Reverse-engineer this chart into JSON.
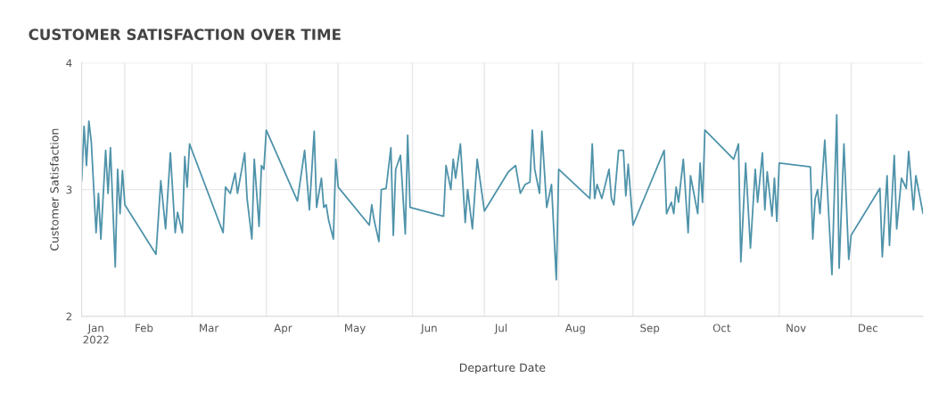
{
  "chart_data": {
    "type": "line",
    "title": "CUSTOMER SATISFACTION OVER TIME",
    "xlabel": "Departure Date",
    "ylabel": "Customer Satisfaction",
    "x": [
      "2022-01-14",
      "2022-01-15",
      "2022-01-16",
      "2022-01-17",
      "2022-01-18",
      "2022-01-20",
      "2022-01-21",
      "2022-01-22",
      "2022-01-24",
      "2022-01-25",
      "2022-01-26",
      "2022-01-28",
      "2022-01-29",
      "2022-01-30",
      "2022-01-31",
      "2022-02-01",
      "2022-02-14",
      "2022-02-16",
      "2022-02-18",
      "2022-02-20",
      "2022-02-22",
      "2022-02-23",
      "2022-02-25",
      "2022-02-26",
      "2022-02-27",
      "2022-02-28",
      "2022-03-14",
      "2022-03-15",
      "2022-03-17",
      "2022-03-19",
      "2022-03-20",
      "2022-03-23",
      "2022-03-24",
      "2022-03-26",
      "2022-03-27",
      "2022-03-29",
      "2022-03-30",
      "2022-03-31",
      "2022-04-01",
      "2022-04-14",
      "2022-04-17",
      "2022-04-19",
      "2022-04-21",
      "2022-04-22",
      "2022-04-24",
      "2022-04-25",
      "2022-04-26",
      "2022-04-27",
      "2022-04-29",
      "2022-04-30",
      "2022-05-01",
      "2022-05-14",
      "2022-05-15",
      "2022-05-16",
      "2022-05-18",
      "2022-05-19",
      "2022-05-21",
      "2022-05-23",
      "2022-05-24",
      "2022-05-25",
      "2022-05-27",
      "2022-05-29",
      "2022-05-30",
      "2022-05-31",
      "2022-06-14",
      "2022-06-15",
      "2022-06-17",
      "2022-06-18",
      "2022-06-19",
      "2022-06-21",
      "2022-06-23",
      "2022-06-24",
      "2022-06-26",
      "2022-06-28",
      "2022-07-01",
      "2022-07-11",
      "2022-07-14",
      "2022-07-16",
      "2022-07-18",
      "2022-07-20",
      "2022-07-21",
      "2022-07-22",
      "2022-07-24",
      "2022-07-25",
      "2022-07-27",
      "2022-07-29",
      "2022-07-31",
      "2022-08-01",
      "2022-08-14",
      "2022-08-15",
      "2022-08-16",
      "2022-08-17",
      "2022-08-19",
      "2022-08-22",
      "2022-08-23",
      "2022-08-24",
      "2022-08-26",
      "2022-08-28",
      "2022-08-29",
      "2022-08-30",
      "2022-09-01",
      "2022-09-14",
      "2022-09-15",
      "2022-09-17",
      "2022-09-18",
      "2022-09-19",
      "2022-09-20",
      "2022-09-22",
      "2022-09-24",
      "2022-09-25",
      "2022-09-28",
      "2022-09-29",
      "2022-09-30",
      "2022-10-01",
      "2022-10-13",
      "2022-10-15",
      "2022-10-16",
      "2022-10-18",
      "2022-10-20",
      "2022-10-22",
      "2022-10-23",
      "2022-10-25",
      "2022-10-26",
      "2022-10-27",
      "2022-10-29",
      "2022-10-30",
      "2022-10-31",
      "2022-11-01",
      "2022-11-14",
      "2022-11-15",
      "2022-11-16",
      "2022-11-17",
      "2022-11-18",
      "2022-11-20",
      "2022-11-23",
      "2022-11-25",
      "2022-11-26",
      "2022-11-28",
      "2022-11-30",
      "2022-12-01",
      "2022-12-13",
      "2022-12-14",
      "2022-12-16",
      "2022-12-17",
      "2022-12-19",
      "2022-12-20",
      "2022-12-22",
      "2022-12-24",
      "2022-12-25",
      "2022-12-27",
      "2022-12-28",
      "2022-12-31"
    ],
    "series": [
      {
        "color": "#4f93aa",
        "values": [
          3.07,
          3.5,
          3.19,
          3.54,
          3.38,
          2.66,
          2.97,
          2.61,
          3.31,
          2.97,
          3.33,
          2.39,
          3.16,
          2.81,
          3.15,
          2.88,
          2.49,
          3.07,
          2.69,
          3.29,
          2.66,
          2.82,
          2.66,
          3.26,
          3.02,
          3.36,
          2.66,
          3.02,
          2.97,
          3.13,
          2.97,
          3.29,
          2.93,
          2.61,
          3.24,
          2.71,
          3.19,
          3.16,
          3.47,
          2.91,
          3.31,
          2.84,
          3.46,
          2.86,
          3.09,
          2.86,
          2.88,
          2.76,
          2.61,
          3.24,
          3.02,
          2.72,
          2.88,
          2.76,
          2.59,
          3.0,
          3.01,
          3.33,
          2.64,
          3.16,
          3.27,
          2.65,
          3.43,
          2.86,
          2.79,
          3.19,
          3.0,
          3.24,
          3.09,
          3.36,
          2.74,
          3.0,
          2.69,
          3.24,
          2.83,
          3.14,
          3.19,
          2.97,
          3.04,
          3.06,
          3.47,
          3.16,
          2.97,
          3.46,
          2.86,
          3.04,
          2.29,
          3.16,
          2.93,
          3.36,
          2.93,
          3.04,
          2.93,
          3.16,
          2.93,
          2.88,
          3.31,
          3.31,
          2.95,
          3.2,
          2.72,
          3.31,
          2.81,
          2.9,
          2.81,
          3.02,
          2.9,
          3.24,
          2.66,
          3.11,
          2.81,
          3.21,
          2.9,
          3.47,
          3.24,
          3.36,
          2.43,
          3.21,
          2.54,
          3.16,
          2.9,
          3.29,
          2.84,
          3.14,
          2.79,
          3.09,
          2.75,
          3.21,
          3.18,
          2.61,
          2.93,
          3.0,
          2.81,
          3.39,
          2.33,
          3.59,
          2.38,
          3.36,
          2.45,
          2.64,
          3.01,
          2.47,
          3.11,
          2.56,
          3.27,
          2.69,
          3.09,
          3.01,
          3.3,
          2.84,
          3.11,
          2.81
        ]
      }
    ],
    "xlim": [
      "2022-01-14",
      "2022-12-31"
    ],
    "xticks": [
      {
        "value": "2022-01-20",
        "label": "Jan\n2022"
      },
      {
        "value": "2022-02-01",
        "label": null
      },
      {
        "value": "2022-02-09",
        "label": "Feb"
      },
      {
        "value": "2022-03-01",
        "label": null
      },
      {
        "value": "2022-03-08",
        "label": "Mar"
      },
      {
        "value": "2022-04-01",
        "label": null
      },
      {
        "value": "2022-04-08",
        "label": "Apr"
      },
      {
        "value": "2022-05-01",
        "label": null
      },
      {
        "value": "2022-05-08",
        "label": "May"
      },
      {
        "value": "2022-06-01",
        "label": null
      },
      {
        "value": "2022-06-08",
        "label": "Jun"
      },
      {
        "value": "2022-07-01",
        "label": null
      },
      {
        "value": "2022-07-08",
        "label": "Jul"
      },
      {
        "value": "2022-08-01",
        "label": null
      },
      {
        "value": "2022-08-08",
        "label": "Aug"
      },
      {
        "value": "2022-09-01",
        "label": null
      },
      {
        "value": "2022-09-08",
        "label": "Sep"
      },
      {
        "value": "2022-10-01",
        "label": null
      },
      {
        "value": "2022-10-08",
        "label": "Oct"
      },
      {
        "value": "2022-11-01",
        "label": null
      },
      {
        "value": "2022-11-08",
        "label": "Nov"
      },
      {
        "value": "2022-12-01",
        "label": null
      },
      {
        "value": "2022-12-08",
        "label": "Dec"
      }
    ],
    "ylim": [
      2,
      4
    ],
    "yticks": [
      2,
      3,
      4
    ],
    "grid": true,
    "line_style": "solid",
    "marker": "none"
  }
}
